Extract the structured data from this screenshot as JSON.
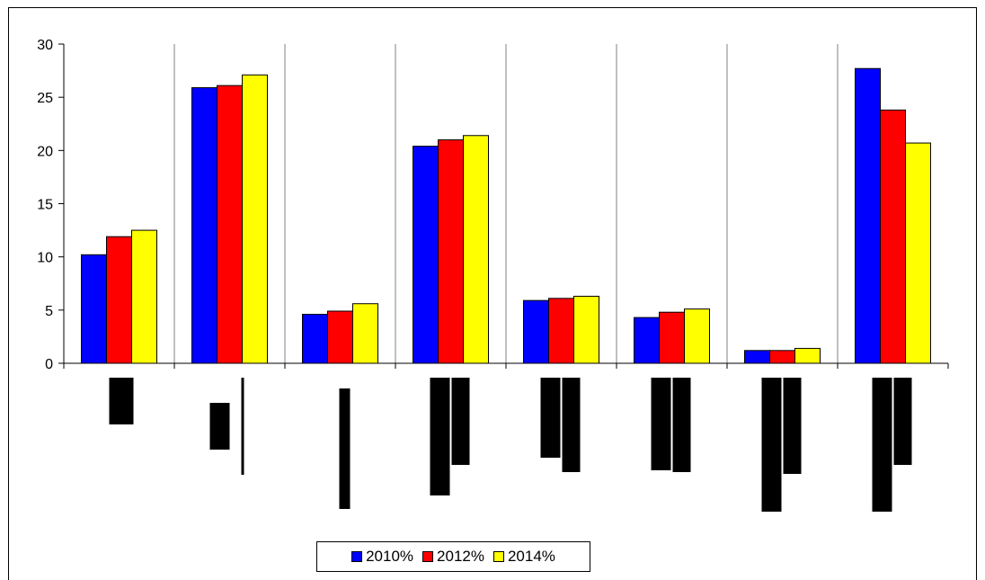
{
  "chart_data": {
    "type": "bar",
    "title": "",
    "xlabel": "",
    "ylabel": "",
    "ylim": [
      0,
      30
    ],
    "yticks": [
      "0",
      "5",
      "10",
      "15",
      "20",
      "25",
      "30"
    ],
    "grid": "vertical category separators",
    "legend_position": "bottom",
    "categories": [
      "",
      "",
      "",
      "",
      "",
      "",
      "",
      ""
    ],
    "series": [
      {
        "name": "2010%",
        "color": "#0000ff",
        "values": [
          10.2,
          25.9,
          4.6,
          20.4,
          5.9,
          4.3,
          1.2,
          27.7
        ]
      },
      {
        "name": "2012%",
        "color": "#ff0000",
        "values": [
          11.9,
          26.1,
          4.9,
          21.0,
          6.1,
          4.8,
          1.2,
          23.8
        ]
      },
      {
        "name": "2014%",
        "color": "#ffff00",
        "values": [
          12.5,
          27.1,
          5.6,
          21.4,
          6.3,
          5.1,
          1.4,
          20.7
        ]
      }
    ]
  }
}
